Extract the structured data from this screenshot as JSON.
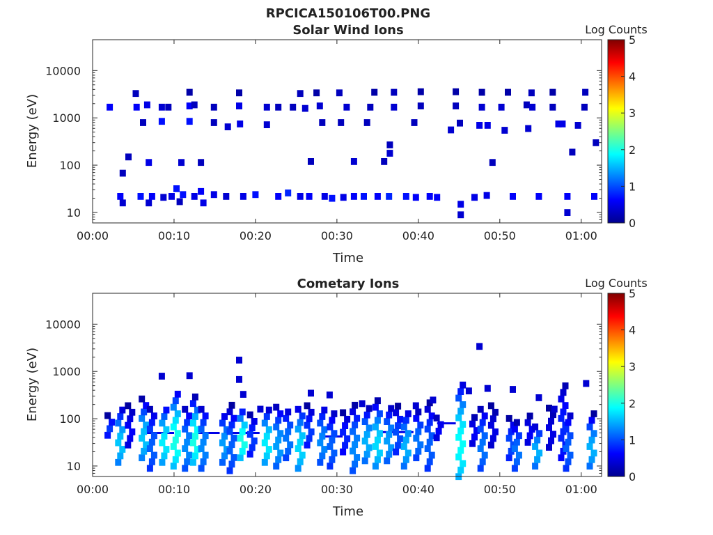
{
  "figure_title": "RPCICA150106T00.PNG",
  "chart_data": [
    {
      "type": "heatmap",
      "title": "Solar Wind Ions",
      "xlabel": "Time",
      "ylabel": "Energy (eV)",
      "y_scale": "log",
      "xlim_min": [
        0,
        62.5
      ],
      "ylim": [
        6,
        45000
      ],
      "x_ticks_min": [
        0,
        10,
        20,
        30,
        40,
        50,
        60
      ],
      "x_tick_labels": [
        "00:00",
        "00:10",
        "00:20",
        "00:30",
        "00:40",
        "00:50",
        "01:00"
      ],
      "y_ticks": [
        10,
        100,
        1000,
        10000
      ],
      "y_tick_labels": [
        "10",
        "100",
        "1000",
        "10000"
      ],
      "colorbar": {
        "label": "Log Counts",
        "range": [
          0,
          5
        ],
        "ticks": [
          "0",
          "1",
          "2",
          "3",
          "4",
          "5"
        ]
      },
      "grid": false,
      "approx_cells": [
        [
          2.1,
          1700,
          0.6
        ],
        [
          3.4,
          22,
          0.6
        ],
        [
          3.7,
          16,
          0.4
        ],
        [
          3.7,
          68,
          0.3
        ],
        [
          4.4,
          150,
          0.3
        ],
        [
          5.3,
          3300,
          0.3
        ],
        [
          5.4,
          1700,
          0.6
        ],
        [
          5.9,
          22,
          0.7
        ],
        [
          6.2,
          800,
          0.3
        ],
        [
          6.7,
          1900,
          0.5
        ],
        [
          6.9,
          16,
          0.4
        ],
        [
          6.9,
          115,
          0.5
        ],
        [
          7.3,
          22,
          0.6
        ],
        [
          8.5,
          1700,
          0.4
        ],
        [
          8.5,
          850,
          0.7
        ],
        [
          8.7,
          21,
          0.4
        ],
        [
          9.3,
          1700,
          0.3
        ],
        [
          9.7,
          22,
          0.5
        ],
        [
          10.3,
          32,
          0.7
        ],
        [
          10.7,
          17,
          0.3
        ],
        [
          10.9,
          115,
          0.4
        ],
        [
          11.1,
          24,
          0.7
        ],
        [
          11.9,
          3500,
          0.2
        ],
        [
          11.9,
          1800,
          0.6
        ],
        [
          11.9,
          850,
          0.7
        ],
        [
          12.5,
          22,
          0.5
        ],
        [
          12.5,
          1900,
          0.3
        ],
        [
          13.3,
          115,
          0.3
        ],
        [
          13.3,
          28,
          0.6
        ],
        [
          13.6,
          16,
          0.5
        ],
        [
          14.9,
          1700,
          0.3
        ],
        [
          14.9,
          24,
          0.5
        ],
        [
          14.9,
          800,
          0.3
        ],
        [
          16.4,
          22,
          0.4
        ],
        [
          16.6,
          650,
          0.4
        ],
        [
          18.0,
          3400,
          0.2
        ],
        [
          18.0,
          1800,
          0.5
        ],
        [
          18.1,
          750,
          0.5
        ],
        [
          18.5,
          22,
          0.5
        ],
        [
          20.0,
          24,
          0.7
        ],
        [
          21.4,
          1700,
          0.4
        ],
        [
          21.4,
          720,
          0.4
        ],
        [
          22.8,
          22,
          0.6
        ],
        [
          22.8,
          1700,
          0.3
        ],
        [
          24.0,
          26,
          0.8
        ],
        [
          24.6,
          1700,
          0.3
        ],
        [
          25.5,
          3300,
          0.3
        ],
        [
          25.5,
          22,
          0.5
        ],
        [
          26.1,
          1600,
          0.4
        ],
        [
          26.6,
          22,
          0.6
        ],
        [
          26.8,
          120,
          0.3
        ],
        [
          27.5,
          3400,
          0.2
        ],
        [
          27.9,
          1800,
          0.4
        ],
        [
          28.2,
          800,
          0.3
        ],
        [
          28.5,
          22,
          0.5
        ],
        [
          29.4,
          20,
          0.7
        ],
        [
          30.3,
          3400,
          0.3
        ],
        [
          30.5,
          800,
          0.3
        ],
        [
          30.8,
          21,
          0.5
        ],
        [
          31.2,
          1700,
          0.4
        ],
        [
          32.1,
          22,
          0.6
        ],
        [
          32.1,
          120,
          0.4
        ],
        [
          33.3,
          22,
          0.7
        ],
        [
          33.7,
          800,
          0.3
        ],
        [
          34.1,
          1700,
          0.3
        ],
        [
          34.6,
          3500,
          0.2
        ],
        [
          35.0,
          22,
          0.6
        ],
        [
          35.8,
          120,
          0.3
        ],
        [
          36.4,
          22,
          0.8
        ],
        [
          36.5,
          180,
          0.4
        ],
        [
          36.5,
          270,
          0.3
        ],
        [
          37.0,
          1700,
          0.4
        ],
        [
          37.0,
          3500,
          0.3
        ],
        [
          38.5,
          22,
          0.7
        ],
        [
          39.5,
          800,
          0.3
        ],
        [
          39.7,
          21,
          0.6
        ],
        [
          40.3,
          1800,
          0.3
        ],
        [
          40.3,
          3600,
          0.2
        ],
        [
          41.4,
          22,
          0.6
        ],
        [
          42.3,
          21,
          0.6
        ],
        [
          44.0,
          560,
          0.4
        ],
        [
          44.6,
          3600,
          0.2
        ],
        [
          44.6,
          1800,
          0.3
        ],
        [
          45.1,
          780,
          0.3
        ],
        [
          45.2,
          15,
          0.5
        ],
        [
          45.2,
          9,
          0.4
        ],
        [
          46.9,
          21,
          0.5
        ],
        [
          47.5,
          700,
          0.5
        ],
        [
          47.8,
          1700,
          0.4
        ],
        [
          47.8,
          3500,
          0.2
        ],
        [
          48.4,
          23,
          0.5
        ],
        [
          48.5,
          700,
          0.5
        ],
        [
          49.1,
          115,
          0.3
        ],
        [
          50.2,
          1700,
          0.4
        ],
        [
          50.6,
          550,
          0.4
        ],
        [
          51.0,
          3500,
          0.2
        ],
        [
          51.6,
          22,
          0.6
        ],
        [
          53.3,
          1900,
          0.3
        ],
        [
          53.5,
          600,
          0.4
        ],
        [
          53.9,
          3400,
          0.3
        ],
        [
          54.0,
          1700,
          0.4
        ],
        [
          54.8,
          22,
          0.6
        ],
        [
          56.5,
          3500,
          0.2
        ],
        [
          56.5,
          1700,
          0.3
        ],
        [
          57.2,
          750,
          0.5
        ],
        [
          57.7,
          750,
          0.5
        ],
        [
          58.3,
          22,
          0.6
        ],
        [
          58.3,
          10,
          0.4
        ],
        [
          58.9,
          190,
          0.3
        ],
        [
          59.6,
          700,
          0.4
        ],
        [
          60.4,
          1700,
          0.3
        ],
        [
          60.5,
          3500,
          0.3
        ],
        [
          61.6,
          22,
          0.6
        ],
        [
          61.8,
          300,
          0.3
        ]
      ]
    },
    {
      "type": "heatmap",
      "title": "Cometary Ions",
      "xlabel": "Time",
      "ylabel": "Energy (eV)",
      "y_scale": "log",
      "xlim_min": [
        0,
        62.5
      ],
      "ylim": [
        6,
        45000
      ],
      "x_ticks_min": [
        0,
        10,
        20,
        30,
        40,
        50,
        60
      ],
      "x_tick_labels": [
        "00:00",
        "00:10",
        "00:20",
        "00:30",
        "00:40",
        "00:50",
        "01:00"
      ],
      "y_ticks": [
        10,
        100,
        1000,
        10000
      ],
      "y_tick_labels": [
        "10",
        "100",
        "1000",
        "10000"
      ],
      "colorbar": {
        "label": "Log Counts",
        "range": [
          0,
          5
        ],
        "ticks": [
          "0",
          "1",
          "2",
          "3",
          "4",
          "5"
        ]
      },
      "grid": false,
      "bursts": [
        [
          2.1,
          45,
          110,
          0.9
        ],
        [
          3.4,
          12,
          160,
          1.6
        ],
        [
          4.6,
          28,
          190,
          0.6
        ],
        [
          6.3,
          15,
          230,
          1.6
        ],
        [
          7.3,
          9,
          160,
          1.1
        ],
        [
          8.8,
          12,
          180,
          1.8
        ],
        [
          10.2,
          10,
          360,
          2.0
        ],
        [
          11.6,
          9,
          160,
          1.3
        ],
        [
          12.6,
          12,
          250,
          2.0
        ],
        [
          13.6,
          9,
          170,
          1.3
        ],
        [
          16.2,
          12,
          130,
          1.4
        ],
        [
          17.1,
          8,
          170,
          1.1
        ],
        [
          18.4,
          15,
          160,
          2.0
        ],
        [
          19.6,
          18,
          120,
          0.9
        ],
        [
          21.4,
          12,
          150,
          1.8
        ],
        [
          22.8,
          10,
          170,
          1.4
        ],
        [
          24.0,
          15,
          160,
          1.2
        ],
        [
          25.5,
          9,
          170,
          1.7
        ],
        [
          26.6,
          28,
          170,
          0.9
        ],
        [
          28.2,
          12,
          180,
          1.3
        ],
        [
          29.4,
          10,
          140,
          1.1
        ],
        [
          31.0,
          20,
          130,
          0.8
        ],
        [
          32.2,
          8,
          170,
          1.3
        ],
        [
          33.7,
          13,
          160,
          1.5
        ],
        [
          35.0,
          10,
          210,
          1.7
        ],
        [
          36.4,
          13,
          170,
          1.4
        ],
        [
          37.5,
          20,
          170,
          1.0
        ],
        [
          38.5,
          10,
          140,
          1.5
        ],
        [
          40.0,
          15,
          140,
          1.2
        ],
        [
          41.4,
          9,
          190,
          1.1
        ],
        [
          42.5,
          40,
          120,
          0.6
        ],
        [
          45.2,
          6,
          520,
          1.9
        ],
        [
          46.9,
          30,
          120,
          0.6
        ],
        [
          47.9,
          9,
          160,
          1.2
        ],
        [
          49.2,
          28,
          170,
          0.5
        ],
        [
          51.4,
          15,
          95,
          1.0
        ],
        [
          52.1,
          9,
          80,
          1.2
        ],
        [
          53.7,
          32,
          120,
          0.6
        ],
        [
          54.6,
          10,
          70,
          1.5
        ],
        [
          56.3,
          25,
          160,
          0.5
        ],
        [
          57.8,
          15,
          560,
          0.8
        ],
        [
          58.4,
          9,
          130,
          1.1
        ],
        [
          61.3,
          10,
          110,
          1.5
        ]
      ],
      "sparse": [
        [
          8.5,
          800
        ],
        [
          11.9,
          820
        ],
        [
          18.0,
          1750
        ],
        [
          18.0,
          680
        ],
        [
          18.5,
          330
        ],
        [
          20.6,
          160
        ],
        [
          26.8,
          350
        ],
        [
          29.1,
          320
        ],
        [
          33.1,
          210
        ],
        [
          39.7,
          190
        ],
        [
          41.8,
          250
        ],
        [
          46.2,
          390
        ],
        [
          47.5,
          3400
        ],
        [
          48.5,
          440
        ],
        [
          51.6,
          420
        ],
        [
          54.8,
          280
        ],
        [
          56.7,
          160
        ],
        [
          60.6,
          560
        ]
      ],
      "horizontal_trace": [
        [
          6.6,
          10.0,
          50
        ],
        [
          12.5,
          15.6,
          50
        ],
        [
          17.1,
          20.5,
          50
        ],
        [
          28.0,
          30.7,
          42
        ],
        [
          35.5,
          39.4,
          52
        ],
        [
          42.3,
          44.6,
          80
        ]
      ]
    }
  ]
}
